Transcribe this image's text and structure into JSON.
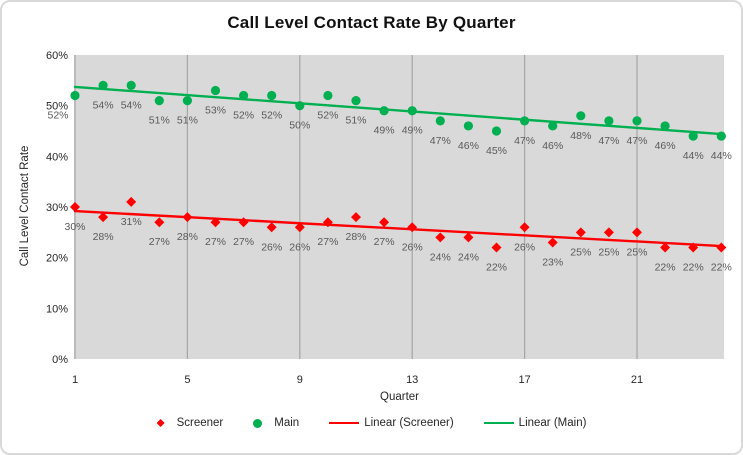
{
  "title": "Call Level Contact Rate By Quarter",
  "axes": {
    "y_title": "Call Level Contact Rate",
    "x_title": "Quarter",
    "y_ticks": [
      {
        "v": 0,
        "label": "0%"
      },
      {
        "v": 10,
        "label": "10%"
      },
      {
        "v": 20,
        "label": "20%"
      },
      {
        "v": 30,
        "label": "30%"
      },
      {
        "v": 40,
        "label": "40%"
      },
      {
        "v": 50,
        "label": "50%"
      },
      {
        "v": 60,
        "label": "60%"
      }
    ],
    "x_ticks": [
      {
        "q": 1,
        "label": "1"
      },
      {
        "q": 5,
        "label": "5"
      },
      {
        "q": 9,
        "label": "9"
      },
      {
        "q": 13,
        "label": "13"
      },
      {
        "q": 17,
        "label": "17"
      },
      {
        "q": 21,
        "label": "21"
      }
    ]
  },
  "legend": {
    "position": "bottom",
    "items": [
      {
        "label": "Screener",
        "marker": "diamond",
        "color": "#FF0000"
      },
      {
        "label": "Main",
        "marker": "circle",
        "color": "#00B050"
      },
      {
        "label": "Linear (Screener)",
        "marker": "line",
        "color": "#FF0000"
      },
      {
        "label": "Linear (Main)",
        "marker": "line",
        "color": "#00B050"
      }
    ]
  },
  "colors": {
    "screener": "#FF0000",
    "main": "#00B050",
    "plot_background": "#D9D9D9",
    "gridline": "#A6A6A6",
    "data_label": "#595959",
    "axis_text": "#262626",
    "title_text": "#111111",
    "chart_border": "#D9D9D9"
  },
  "chart_data": {
    "type": "scatter",
    "title": "Call Level Contact Rate By Quarter",
    "xlabel": "Quarter",
    "ylabel": "Call Level Contact Rate",
    "x": [
      1,
      2,
      3,
      4,
      5,
      6,
      7,
      8,
      9,
      10,
      11,
      12,
      13,
      14,
      15,
      16,
      17,
      18,
      19,
      20,
      21,
      22,
      23,
      24
    ],
    "series": [
      {
        "name": "Screener",
        "marker": "diamond",
        "color": "#FF0000",
        "values": [
          30,
          28,
          31,
          27,
          28,
          27,
          27,
          26,
          26,
          27,
          28,
          27,
          26,
          24,
          24,
          22,
          26,
          23,
          25,
          25,
          25,
          22,
          22,
          22
        ]
      },
      {
        "name": "Main",
        "marker": "circle",
        "color": "#00B050",
        "values": [
          52,
          54,
          54,
          51,
          51,
          53,
          52,
          52,
          50,
          52,
          51,
          49,
          49,
          47,
          46,
          45,
          47,
          46,
          48,
          47,
          47,
          46,
          44,
          44
        ]
      }
    ],
    "data_labels": true,
    "data_label_format": "0%",
    "trendlines": [
      {
        "name": "Linear (Screener)",
        "color": "#FF0000",
        "start": 29.2,
        "end": 22.3
      },
      {
        "name": "Linear (Main)",
        "color": "#00B050",
        "start": 53.7,
        "end": 44.4
      }
    ],
    "ylim": [
      0,
      60
    ],
    "y_tick_step": 10,
    "gridlines_x": [
      1,
      5,
      9,
      13,
      17,
      21
    ],
    "grid_horizontal": false,
    "plot_bg": "#D9D9D9",
    "legend_position": "bottom"
  }
}
